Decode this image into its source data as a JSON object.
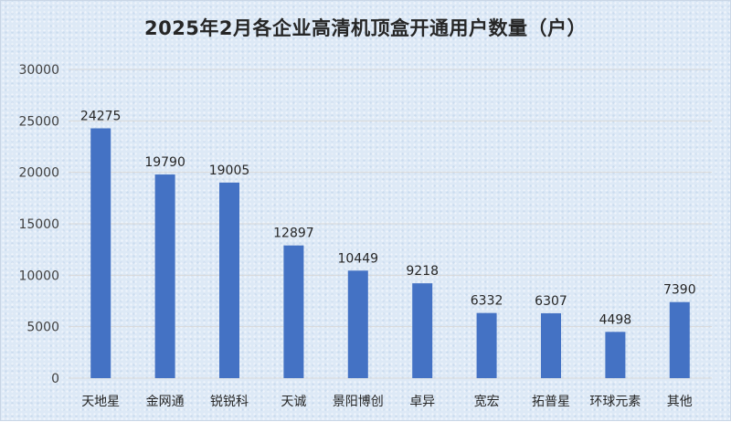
{
  "chart_data": {
    "type": "bar",
    "title": "2025年2月各企业高清机顶盒开通用户数量（户）",
    "categories": [
      "天地星",
      "金网通",
      "锐锐科",
      "天诚",
      "景阳博创",
      "卓异",
      "宽宏",
      "拓普星",
      "环球元素",
      "其他"
    ],
    "values": [
      24275,
      19790,
      19005,
      12897,
      10449,
      9218,
      6332,
      6307,
      4498,
      7390
    ],
    "data_labels": [
      "24275",
      "19790",
      "19005",
      "12897",
      "10449",
      "9218",
      "6332",
      "6307",
      "4498",
      "7390"
    ],
    "yticks": [
      0,
      5000,
      10000,
      15000,
      20000,
      25000,
      30000
    ],
    "ytick_labels": [
      "0",
      "5000",
      "10000",
      "15000",
      "20000",
      "25000",
      "30000"
    ],
    "xlabel": "",
    "ylabel": "",
    "ylim": [
      0,
      30000
    ],
    "grid": true,
    "legend": "none",
    "bar_color": "#4472c4",
    "background_color": "#dde9f6"
  }
}
